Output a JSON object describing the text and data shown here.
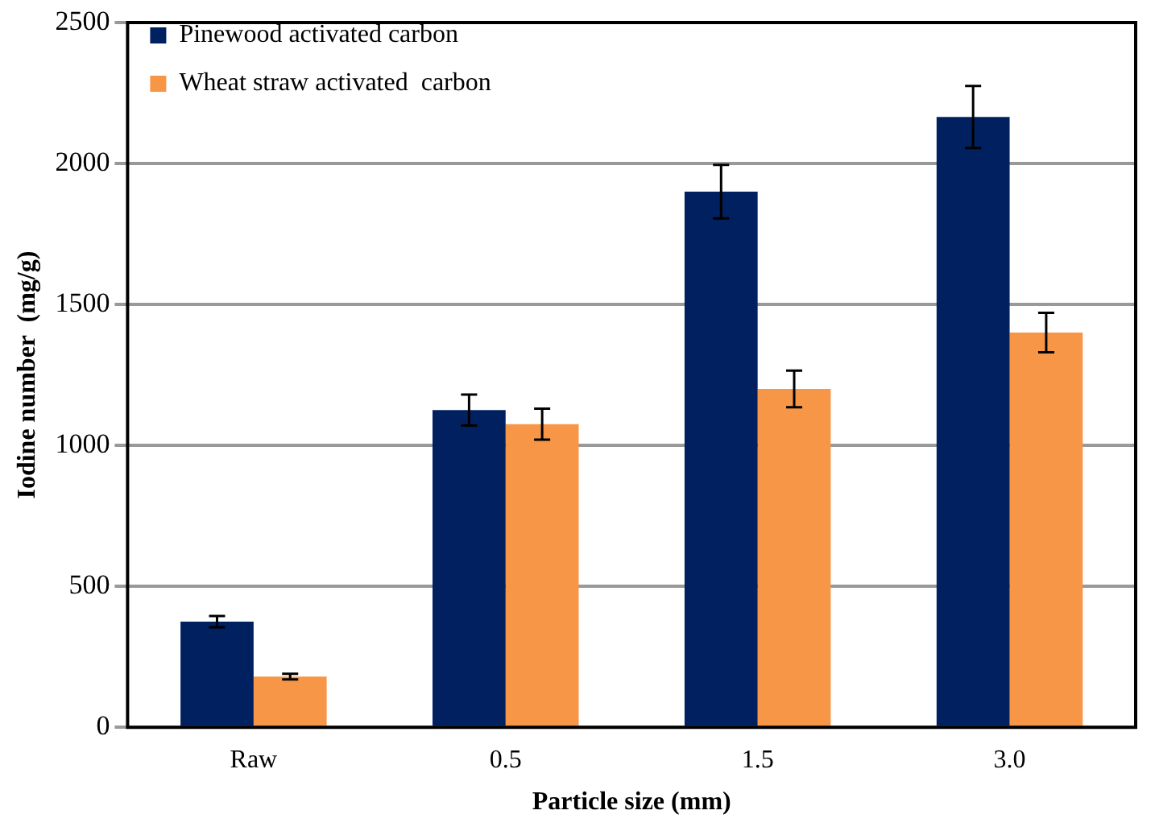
{
  "chart_data": {
    "type": "bar",
    "xlabel": "Particle size (mm)",
    "ylabel": "Iodine number  (mg/g)",
    "categories": [
      "Raw",
      "0.5",
      "1.5",
      "3.0"
    ],
    "series": [
      {
        "name": "Pinewood activated carbon",
        "color": "#002060",
        "values": [
          375,
          1125,
          1900,
          2165
        ],
        "errors": [
          20,
          55,
          95,
          110
        ]
      },
      {
        "name": "Wheat straw activated  carbon",
        "color": "#f79646",
        "values": [
          180,
          1075,
          1200,
          1400
        ],
        "errors": [
          10,
          55,
          65,
          70
        ]
      }
    ],
    "ylim": [
      0,
      2500
    ],
    "yticks": [
      0,
      500,
      1000,
      1500,
      2000,
      2500
    ],
    "grid": "y",
    "legend": "top left"
  }
}
